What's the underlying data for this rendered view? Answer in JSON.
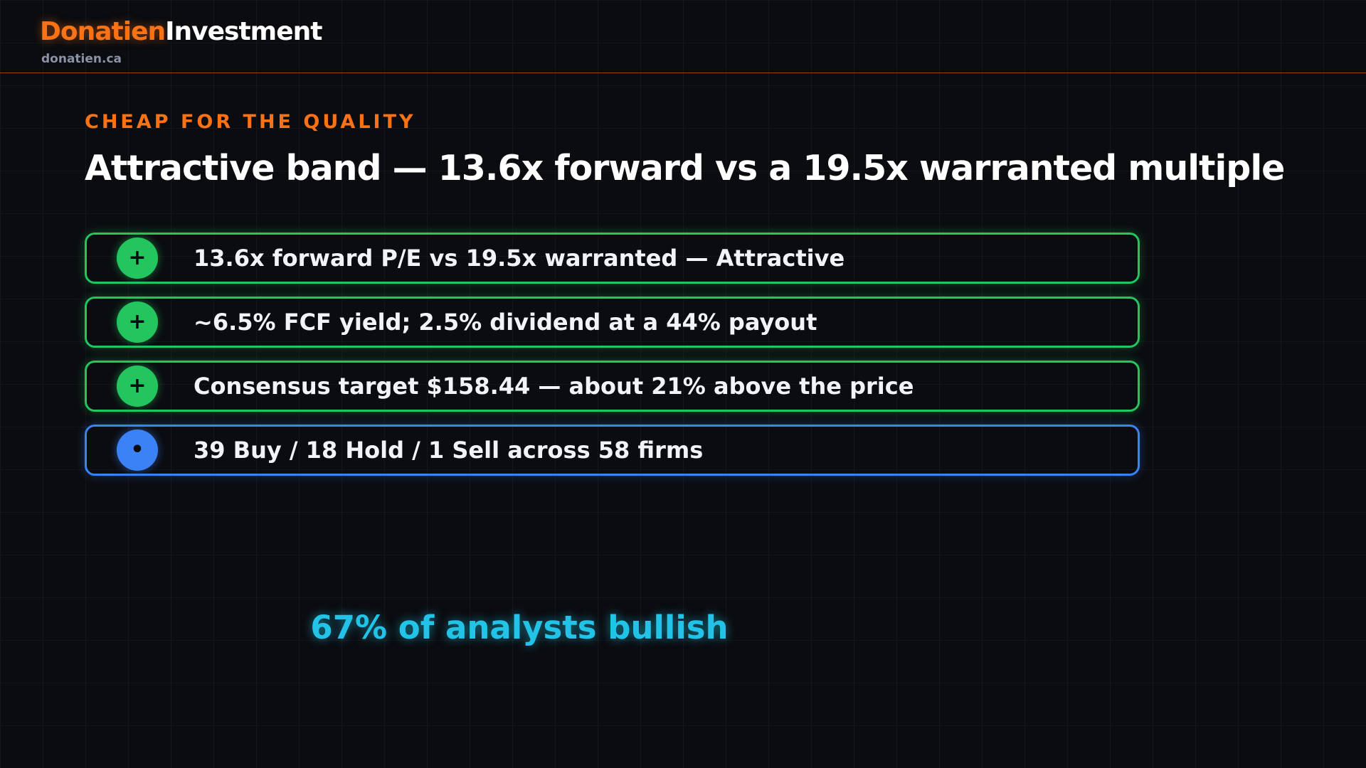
{
  "header": {
    "brand_first": "Donatien",
    "brand_second": "Investment",
    "url": "donatien.ca"
  },
  "eyebrow": "CHEAP FOR THE QUALITY",
  "title": "Attractive band — 13.6x forward vs a 19.5x warranted multiple",
  "items": [
    {
      "icon": "+",
      "text": "13.6x forward P/E vs 19.5x warranted — Attractive",
      "color": "#22c55e"
    },
    {
      "icon": "+",
      "text": "~6.5% FCF yield; 2.5% dividend at a 44% payout",
      "color": "#22c55e"
    },
    {
      "icon": "+",
      "text": "Consensus target $158.44 — about 21% above the price",
      "color": "#22c55e"
    },
    {
      "icon": "•",
      "text": "39 Buy / 18 Hold / 1 Sell across 58 firms",
      "color": "#3b82f6"
    }
  ],
  "footer": "67% of analysts bullish"
}
